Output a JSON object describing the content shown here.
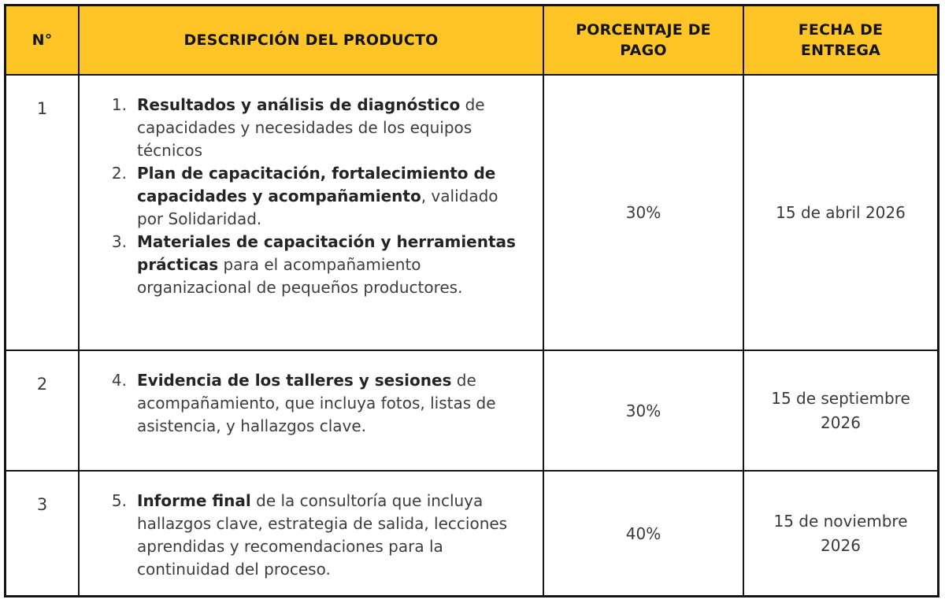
{
  "table": {
    "headers": [
      "N°",
      "DESCRIPCIÓN DEL PRODUCTO",
      "PORCENTAJE DE PAGO",
      "FECHA DE ENTREGA"
    ],
    "rows": [
      {
        "num": "1",
        "items": [
          {
            "marker": "1.",
            "bold": "Resultados y análisis de diagnóstico",
            "rest": " de capacidades y necesidades de los equipos técnicos"
          },
          {
            "marker": "2.",
            "bold": "Plan de capacitación, fortalecimiento de capacidades y acompañamiento",
            "rest": ", validado por Solidaridad."
          },
          {
            "marker": "3.",
            "bold": "Materiales de capacitación y herramientas prácticas",
            "rest": " para el acompañamiento organizacional de pequeños productores."
          }
        ],
        "percentage": "30%",
        "date": "15 de abril 2026"
      },
      {
        "num": "2",
        "items": [
          {
            "marker": "4.",
            "bold": "Evidencia de los talleres y sesiones",
            "rest": " de acompañamiento, que incluya fotos, listas de asistencia, y hallazgos clave."
          }
        ],
        "percentage": "30%",
        "date": "15 de septiembre 2026"
      },
      {
        "num": "3",
        "items": [
          {
            "marker": "5.",
            "bold": "Informe final",
            "rest": " de la consultoría que incluya hallazgos clave, estrategia de salida, lecciones aprendidas y recomendaciones para la continuidad del proceso."
          }
        ],
        "percentage": "40%",
        "date": "15 de noviembre 2026"
      }
    ]
  },
  "colors": {
    "header_bg": "#FFC425",
    "border": "#161616",
    "body_text": "#3d3d3d",
    "bold_text": "#242424"
  }
}
